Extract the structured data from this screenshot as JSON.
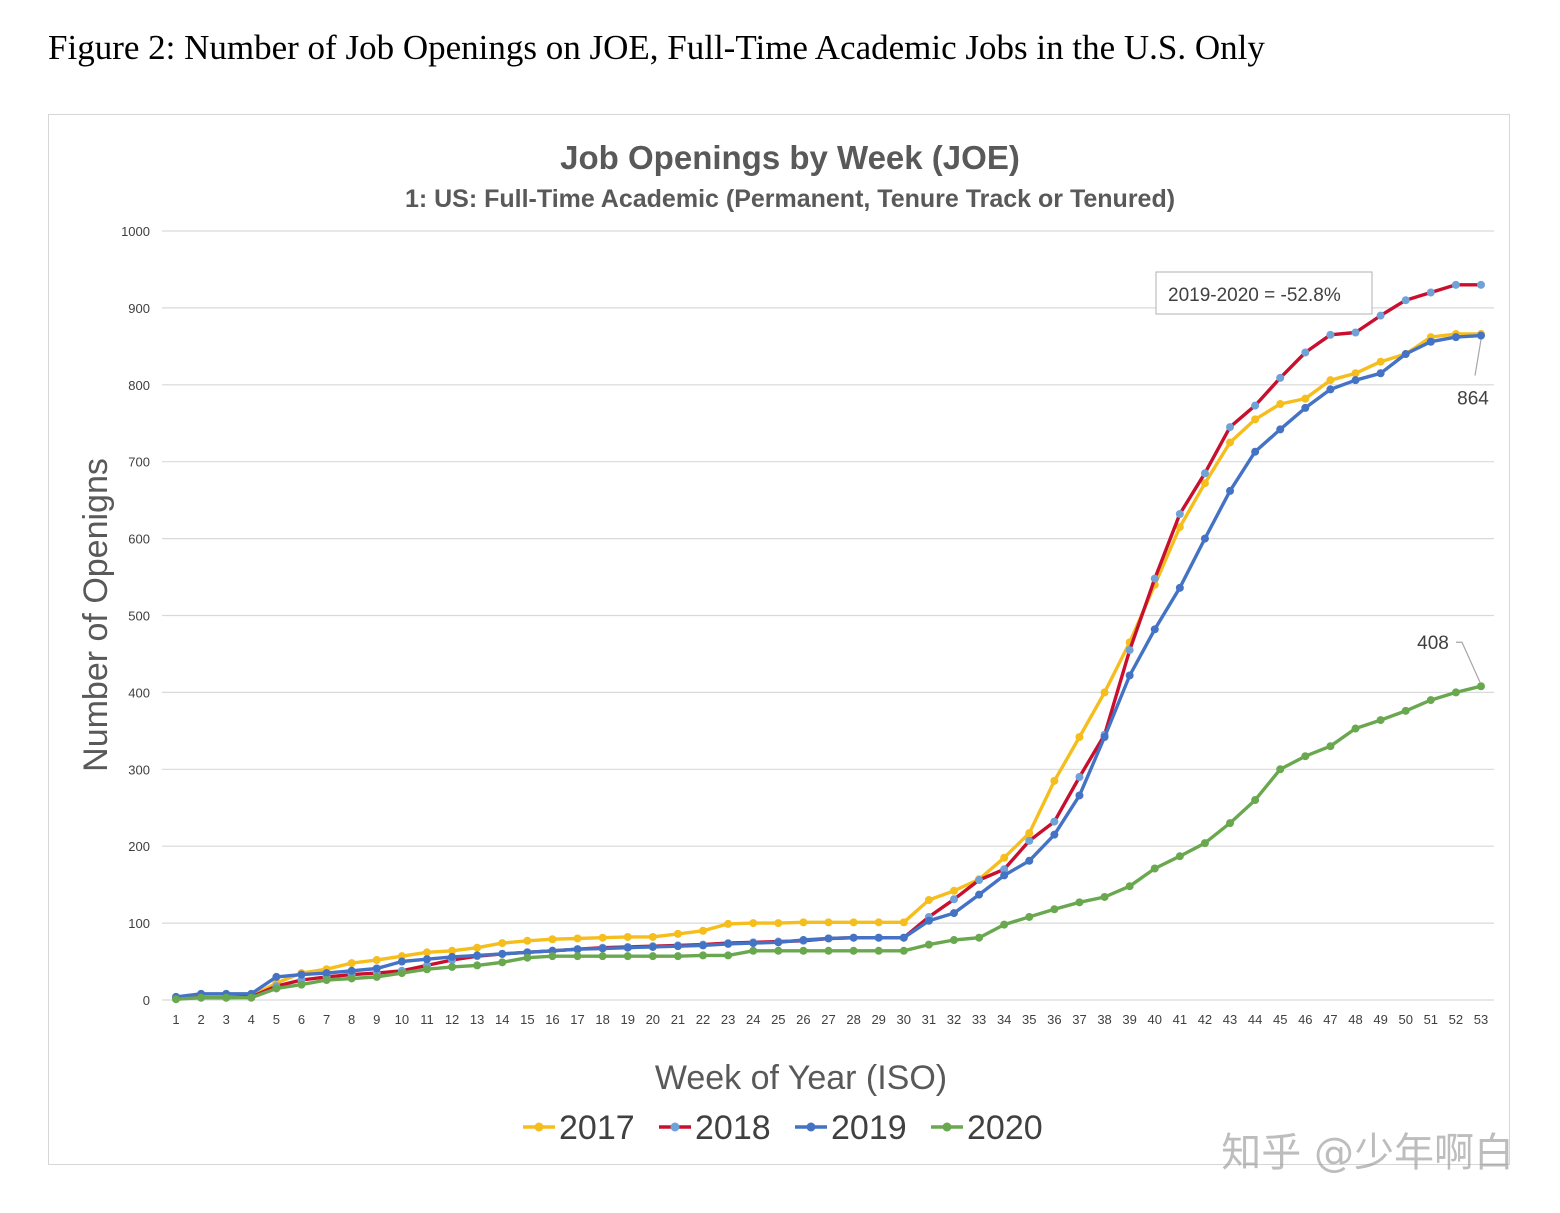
{
  "figure_caption": "Figure 2: Number of Job Openings on JOE, Full-Time Academic Jobs in the U.S. Only",
  "watermark": "知乎 @少年啊白",
  "chart_data": {
    "type": "line",
    "title": "Job Openings by Week (JOE)",
    "subtitle": "1: US: Full-Time Academic (Permanent, Tenure Track or Tenured)",
    "xlabel": "Week of Year (ISO)",
    "ylabel": "Number of Openigns",
    "ylim": [
      0,
      1000
    ],
    "yticks": [
      "0",
      "100",
      "200",
      "300",
      "400",
      "500",
      "600",
      "700",
      "800",
      "900",
      "1000"
    ],
    "grid": true,
    "legend_position": "bottom",
    "x": [
      "1",
      "2",
      "3",
      "4",
      "5",
      "6",
      "7",
      "8",
      "9",
      "10",
      "11",
      "12",
      "13",
      "14",
      "15",
      "16",
      "17",
      "18",
      "19",
      "20",
      "21",
      "22",
      "23",
      "24",
      "25",
      "26",
      "27",
      "28",
      "29",
      "30",
      "31",
      "32",
      "33",
      "34",
      "35",
      "36",
      "37",
      "38",
      "39",
      "40",
      "41",
      "42",
      "43",
      "44",
      "45",
      "46",
      "47",
      "48",
      "49",
      "50",
      "51",
      "52",
      "53"
    ],
    "series": [
      {
        "name": "2017",
        "color": "#f5be1c",
        "marker": "#f5be1c",
        "values": [
          3,
          5,
          5,
          5,
          22,
          35,
          40,
          48,
          52,
          57,
          62,
          64,
          68,
          74,
          77,
          79,
          80,
          81,
          82,
          82,
          86,
          90,
          99,
          100,
          100,
          101,
          101,
          101,
          101,
          101,
          130,
          142,
          157,
          185,
          217,
          285,
          342,
          400,
          465,
          540,
          615,
          672,
          725,
          755,
          775,
          782,
          806,
          815,
          830,
          840,
          862,
          866,
          866
        ]
      },
      {
        "name": "2018",
        "color": "#c8102e",
        "marker": "#6fa2d8",
        "values": [
          2,
          3,
          3,
          4,
          18,
          26,
          30,
          33,
          35,
          38,
          45,
          52,
          57,
          60,
          62,
          64,
          66,
          68,
          69,
          70,
          71,
          72,
          74,
          75,
          76,
          77,
          80,
          81,
          81,
          81,
          108,
          131,
          156,
          170,
          207,
          232,
          290,
          345,
          455,
          548,
          632,
          685,
          745,
          773,
          809,
          842,
          865,
          868,
          890,
          910,
          920,
          930,
          930
        ]
      },
      {
        "name": "2019",
        "color": "#4472c4",
        "marker": "#4472c4",
        "values": [
          4,
          8,
          8,
          8,
          30,
          33,
          35,
          38,
          41,
          50,
          53,
          56,
          58,
          60,
          62,
          64,
          66,
          67,
          68,
          69,
          70,
          71,
          73,
          74,
          75,
          78,
          80,
          81,
          81,
          81,
          103,
          113,
          137,
          162,
          181,
          215,
          266,
          342,
          422,
          482,
          536,
          600,
          662,
          713,
          742,
          770,
          794,
          806,
          815,
          840,
          856,
          862,
          864
        ]
      },
      {
        "name": "2020",
        "color": "#6aa84f",
        "marker": "#6aa84f",
        "values": [
          1,
          3,
          3,
          3,
          15,
          20,
          26,
          28,
          30,
          35,
          40,
          43,
          45,
          49,
          55,
          57,
          57,
          57,
          57,
          57,
          57,
          58,
          58,
          64,
          64,
          64,
          64,
          64,
          64,
          64,
          72,
          78,
          81,
          98,
          108,
          118,
          127,
          134,
          148,
          171,
          187,
          204,
          230,
          260,
          300,
          317,
          330,
          353,
          364,
          376,
          390,
          400,
          408
        ]
      }
    ],
    "annotations": [
      {
        "text": "2019-2020 = -52.8%",
        "boxed": true
      },
      {
        "text": "864",
        "series": "2019",
        "x": "53"
      },
      {
        "text": "408",
        "series": "2020",
        "x": "53"
      }
    ]
  }
}
